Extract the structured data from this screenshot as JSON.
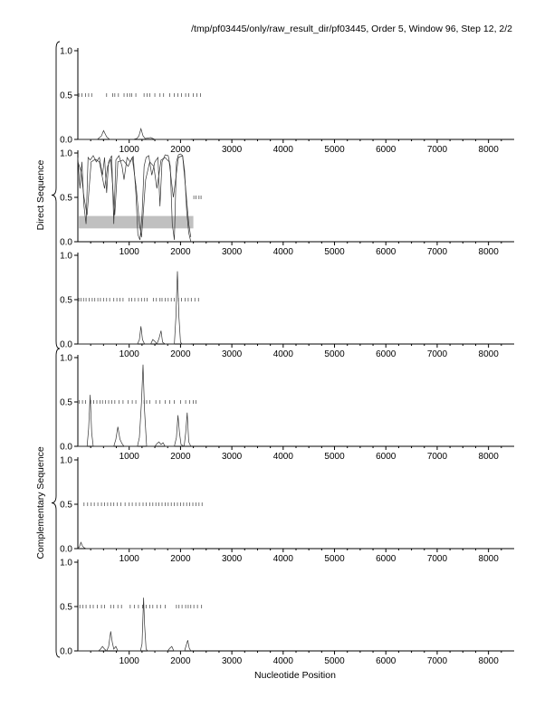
{
  "header": "/tmp/pf03445/only/raw_result_dir/pf03445, Order 5, Window 96, Step 12, 2/2",
  "xlabel": "Nucleotide Position",
  "groups": [
    {
      "label": "Direct Sequence"
    },
    {
      "label": "Complementary Sequence"
    }
  ],
  "colors": {
    "axis": "#000000",
    "trace": "#333333",
    "tick_mark": "#555555",
    "band": "#c0c0c0"
  },
  "chart_data": [
    {
      "type": "line",
      "group": "Direct Sequence",
      "frame": 1,
      "xlim": [
        0,
        8500
      ],
      "ylim": [
        0,
        1
      ],
      "xticks": [
        1000,
        2000,
        3000,
        4000,
        5000,
        6000,
        7000,
        8000
      ],
      "xtick_labels": [
        "1000",
        "2000",
        "3000",
        "4000",
        "5000",
        "6000",
        "7000",
        "8000"
      ],
      "yticks": [
        0,
        0.5,
        1
      ],
      "ytick_labels": [
        "0.0",
        "0.5",
        "1.0"
      ],
      "series": [
        {
          "x": [
            0,
            380,
            420,
            460,
            500,
            560,
            620,
            1080,
            1150,
            1190,
            1230,
            1270,
            1310,
            1420,
            1500,
            2200
          ],
          "y": [
            0,
            0,
            0.02,
            0.04,
            0.1,
            0.03,
            0,
            0,
            0.01,
            0.04,
            0.12,
            0.04,
            0.01,
            0.02,
            0,
            0
          ]
        }
      ],
      "marks_y": 0.5,
      "marks_x": [
        20,
        80,
        150,
        210,
        270,
        560,
        680,
        720,
        790,
        900,
        960,
        1010,
        1050,
        1130,
        1290,
        1350,
        1400,
        1500,
        1600,
        1670,
        1790,
        1880,
        1950,
        2020,
        2100,
        2160,
        2250,
        2320,
        2390
      ]
    },
    {
      "type": "line",
      "group": "Direct Sequence",
      "frame": 2,
      "xlim": [
        0,
        8500
      ],
      "ylim": [
        0,
        1
      ],
      "xticks": [
        1000,
        2000,
        3000,
        4000,
        5000,
        6000,
        7000,
        8000
      ],
      "xtick_labels": [
        "1000",
        "2000",
        "3000",
        "4000",
        "5000",
        "6000",
        "7000",
        "8000"
      ],
      "yticks": [
        0,
        0.5,
        1
      ],
      "ytick_labels": [
        "0.0",
        "0.5",
        "1.0"
      ],
      "band": {
        "x": [
          20,
          2250
        ],
        "y": [
          0.15,
          0.29
        ]
      },
      "series": [
        {
          "x": [
            0,
            40,
            80,
            120,
            160,
            200,
            240,
            300,
            360,
            420,
            480,
            520,
            560,
            600,
            660,
            700,
            740,
            800,
            860,
            900,
            960,
            1020,
            1080,
            1130,
            1170,
            1210,
            1250,
            1290,
            1330,
            1380,
            1440,
            1500,
            1560,
            1600,
            1640,
            1700,
            1760,
            1800,
            1840,
            1880,
            1920,
            1960,
            2000,
            2040,
            2080,
            2120,
            2160,
            2200
          ],
          "y": [
            0.95,
            0.6,
            0.9,
            0.4,
            0.2,
            0.95,
            0.92,
            0.97,
            0.9,
            0.95,
            0.75,
            0.95,
            0.55,
            0.9,
            0.97,
            0.2,
            0.92,
            0.97,
            0.85,
            0.7,
            0.95,
            0.9,
            0.96,
            0.55,
            0.08,
            0.02,
            0.3,
            0.85,
            0.95,
            0.97,
            0.75,
            0.9,
            0.95,
            0.4,
            0.9,
            0.98,
            0.97,
            0.85,
            0.2,
            0.02,
            0.9,
            0.98,
            0.99,
            0.97,
            0.8,
            0.35,
            0.1,
            0
          ]
        },
        {
          "x": [
            0,
            60,
            120,
            180,
            260,
            340,
            420,
            520,
            580,
            640,
            720,
            780,
            880,
            980,
            1060,
            1140,
            1200,
            1240,
            1320,
            1400,
            1480,
            1540,
            1620,
            1700,
            1780,
            1860,
            1960,
            2040,
            2100,
            2160,
            2200
          ],
          "y": [
            0.9,
            0.8,
            0.5,
            0.3,
            0.9,
            0.93,
            0.9,
            0.6,
            0.85,
            0.93,
            0.3,
            0.9,
            0.92,
            0.85,
            0.95,
            0.6,
            0.2,
            0.05,
            0.7,
            0.9,
            0.85,
            0.6,
            0.92,
            0.95,
            0.9,
            0.5,
            0.95,
            0.97,
            0.6,
            0.2,
            0.05
          ]
        }
      ],
      "marks_y": 0.5,
      "marks_x": [
        2260,
        2300,
        2360,
        2400
      ]
    },
    {
      "type": "line",
      "group": "Direct Sequence",
      "frame": 3,
      "xlim": [
        0,
        8500
      ],
      "ylim": [
        0,
        1
      ],
      "xticks": [
        1000,
        2000,
        3000,
        4000,
        5000,
        6000,
        7000,
        8000
      ],
      "xtick_labels": [
        "1000",
        "2000",
        "3000",
        "4000",
        "5000",
        "6000",
        "7000",
        "8000"
      ],
      "yticks": [
        0,
        0.5,
        1
      ],
      "ytick_labels": [
        "0.0",
        "0.5",
        "1.0"
      ],
      "series": [
        {
          "x": [
            0,
            1160,
            1200,
            1230,
            1260,
            1300,
            1420,
            1460,
            1500,
            1540,
            1580,
            1620,
            1650,
            1700,
            1880,
            1910,
            1940,
            1970,
            2000,
            2030,
            2200
          ],
          "y": [
            0,
            0,
            0.05,
            0.2,
            0.05,
            0,
            0,
            0.05,
            0.03,
            0,
            0.06,
            0.15,
            0.02,
            0,
            0,
            0.3,
            0.82,
            0.3,
            0.02,
            0,
            0
          ]
        }
      ],
      "marks_y": 0.5,
      "marks_x": [
        20,
        60,
        110,
        160,
        220,
        280,
        330,
        390,
        440,
        500,
        560,
        620,
        700,
        760,
        820,
        880,
        1000,
        1050,
        1110,
        1180,
        1240,
        1300,
        1350,
        1470,
        1530,
        1600,
        1640,
        1700,
        1760,
        1820,
        1880,
        1960,
        2020,
        2090,
        2150,
        2210,
        2280,
        2350
      ]
    },
    {
      "type": "line",
      "group": "Complementary Sequence",
      "frame": 1,
      "xlim": [
        0,
        8500
      ],
      "ylim": [
        0,
        1
      ],
      "xticks": [
        1000,
        2000,
        3000,
        4000,
        5000,
        6000,
        7000,
        8000
      ],
      "xtick_labels": [
        "1000",
        "2000",
        "3000",
        "4000",
        "5000",
        "6000",
        "7000",
        "8000"
      ],
      "yticks": [
        0,
        0.5,
        1
      ],
      "ytick_labels": [
        "0.0",
        "0.5",
        "1.0"
      ],
      "series": [
        {
          "x": [
            0,
            180,
            210,
            240,
            270,
            300,
            700,
            740,
            780,
            820,
            860,
            900,
            1160,
            1200,
            1240,
            1270,
            1300,
            1340,
            1500,
            1540,
            1580,
            1620,
            1660,
            1700,
            1880,
            1920,
            1950,
            1980,
            2010,
            2070,
            2100,
            2130,
            2160,
            2200
          ],
          "y": [
            0,
            0,
            0.2,
            0.58,
            0.15,
            0,
            0,
            0.08,
            0.22,
            0.08,
            0.03,
            0,
            0,
            0.1,
            0.5,
            0.92,
            0.4,
            0,
            0,
            0.03,
            0.05,
            0.02,
            0.04,
            0,
            0,
            0.1,
            0.35,
            0.15,
            0.02,
            0,
            0.15,
            0.38,
            0.05,
            0
          ]
        }
      ],
      "marks_y": 0.5,
      "marks_x": [
        30,
        90,
        150,
        250,
        310,
        370,
        430,
        480,
        540,
        600,
        660,
        720,
        800,
        880,
        980,
        1060,
        1130,
        1290,
        1340,
        1400,
        1520,
        1600,
        1700,
        1790,
        1880,
        2000,
        2100,
        2180,
        2250,
        2300
      ]
    },
    {
      "type": "line",
      "group": "Complementary Sequence",
      "frame": 2,
      "xlim": [
        0,
        8500
      ],
      "ylim": [
        0,
        1
      ],
      "xticks": [
        1000,
        2000,
        3000,
        4000,
        5000,
        6000,
        7000,
        8000
      ],
      "xtick_labels": [
        "1000",
        "2000",
        "3000",
        "4000",
        "5000",
        "6000",
        "7000",
        "8000"
      ],
      "yticks": [
        0,
        0.5,
        1
      ],
      "ytick_labels": [
        "0.0",
        "0.5",
        "1.0"
      ],
      "series": [
        {
          "x": [
            0,
            30,
            60,
            90,
            120,
            160,
            2200
          ],
          "y": [
            0,
            0.02,
            0.07,
            0.03,
            0.01,
            0,
            0
          ]
        }
      ],
      "marks_y": 0.5,
      "marks_x": [
        120,
        190,
        260,
        320,
        390,
        460,
        520,
        580,
        640,
        700,
        770,
        840,
        920,
        1000,
        1060,
        1130,
        1200,
        1270,
        1330,
        1400,
        1460,
        1520,
        1580,
        1640,
        1700,
        1760,
        1820,
        1880,
        1940,
        2000,
        2060,
        2120,
        2180,
        2240,
        2300,
        2360,
        2420
      ]
    },
    {
      "type": "line",
      "group": "Complementary Sequence",
      "frame": 3,
      "xlim": [
        0,
        8500
      ],
      "ylim": [
        0,
        1
      ],
      "xticks": [
        1000,
        2000,
        3000,
        4000,
        5000,
        6000,
        7000,
        8000
      ],
      "xtick_labels": [
        "1000",
        "2000",
        "3000",
        "4000",
        "5000",
        "6000",
        "7000",
        "8000"
      ],
      "yticks": [
        0,
        0.5,
        1
      ],
      "ytick_labels": [
        "0.0",
        "0.5",
        "1.0"
      ],
      "series": [
        {
          "x": [
            0,
            400,
            440,
            480,
            520,
            560,
            600,
            640,
            670,
            700,
            740,
            780,
            1220,
            1250,
            1280,
            1300,
            1330,
            1360,
            1750,
            1790,
            1830,
            1870,
            2080,
            2110,
            2140,
            2170,
            2200
          ],
          "y": [
            0,
            0,
            0.02,
            0.05,
            0.02,
            0,
            0.05,
            0.22,
            0.1,
            0.02,
            0.05,
            0,
            0,
            0.08,
            0.6,
            0.3,
            0.02,
            0,
            0,
            0.03,
            0.05,
            0,
            0,
            0.06,
            0.12,
            0.03,
            0
          ]
        }
      ],
      "marks_y": 0.5,
      "marks_x": [
        40,
        100,
        160,
        240,
        300,
        380,
        460,
        520,
        640,
        700,
        780,
        850,
        1020,
        1100,
        1180,
        1260,
        1330,
        1400,
        1460,
        1540,
        1610,
        1700,
        1920,
        1970,
        2030,
        2100,
        2150,
        2200,
        2260,
        2330,
        2410
      ]
    }
  ]
}
